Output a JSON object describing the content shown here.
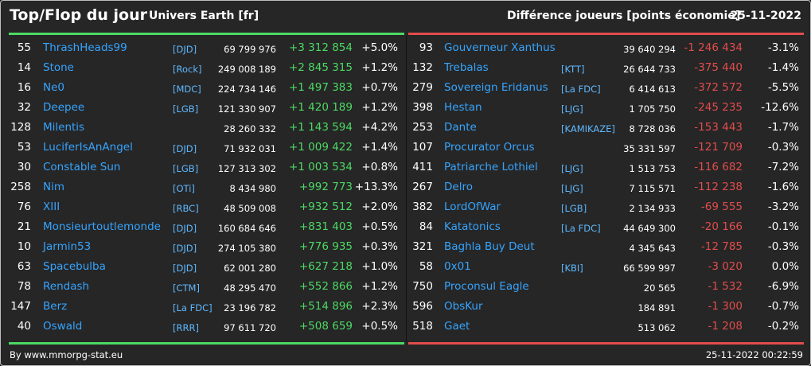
{
  "header": {
    "title": "Top/Flop du jour",
    "subtitle": "Univers Earth [fr]",
    "metric": "Différence joueurs [points économie]",
    "date": "25-11-2022"
  },
  "colors": {
    "accent_positive": "#4cd964",
    "accent_negative": "#e24c4c",
    "link": "#35a4ff",
    "background": "#262626"
  },
  "top": [
    {
      "rank": "55",
      "name": "ThrashHeads99",
      "tag": "[DJD]",
      "score": "69 799 976",
      "diff": "+3 312 854",
      "pct": "+5.0%"
    },
    {
      "rank": "14",
      "name": "Stone",
      "tag": "[Rock]",
      "score": "249 008 189",
      "diff": "+2 845 315",
      "pct": "+1.2%"
    },
    {
      "rank": "16",
      "name": "Ne0",
      "tag": "[MDC]",
      "score": "224 734 146",
      "diff": "+1 497 383",
      "pct": "+0.7%"
    },
    {
      "rank": "32",
      "name": "Deepee",
      "tag": "[LGB]",
      "score": "121 330 907",
      "diff": "+1 420 189",
      "pct": "+1.2%"
    },
    {
      "rank": "128",
      "name": "Milentis",
      "tag": "",
      "score": "28 260 332",
      "diff": "+1 143 594",
      "pct": "+4.2%"
    },
    {
      "rank": "53",
      "name": "LuciferIsAnAngel",
      "tag": "[DJD]",
      "score": "71 932 031",
      "diff": "+1 009 422",
      "pct": "+1.4%"
    },
    {
      "rank": "30",
      "name": "Constable Sun",
      "tag": "[LGB]",
      "score": "127 313 302",
      "diff": "+1 003 534",
      "pct": "+0.8%"
    },
    {
      "rank": "258",
      "name": "Nim",
      "tag": "[OTi]",
      "score": "8 434 980",
      "diff": "+992 773",
      "pct": "+13.3%"
    },
    {
      "rank": "76",
      "name": "XIII",
      "tag": "[RBC]",
      "score": "48 509 008",
      "diff": "+932 512",
      "pct": "+2.0%"
    },
    {
      "rank": "21",
      "name": "Monsieurtoutlemonde",
      "tag": "[DJD]",
      "score": "160 684 646",
      "diff": "+831 403",
      "pct": "+0.5%"
    },
    {
      "rank": "10",
      "name": "Jarmin53",
      "tag": "[DJD]",
      "score": "274 105 380",
      "diff": "+776 935",
      "pct": "+0.3%"
    },
    {
      "rank": "63",
      "name": "Spacebulba",
      "tag": "[DJD]",
      "score": "62 001 280",
      "diff": "+627 218",
      "pct": "+1.0%"
    },
    {
      "rank": "78",
      "name": "Rendash",
      "tag": "[CTM]",
      "score": "48 295 470",
      "diff": "+552 866",
      "pct": "+1.2%"
    },
    {
      "rank": "147",
      "name": "Berz",
      "tag": "[La FDC]",
      "score": "23 196 782",
      "diff": "+514 896",
      "pct": "+2.3%"
    },
    {
      "rank": "40",
      "name": "Oswald",
      "tag": "[RRR]",
      "score": "97 611 720",
      "diff": "+508 659",
      "pct": "+0.5%"
    }
  ],
  "flop": [
    {
      "rank": "93",
      "name": "Gouverneur Xanthus",
      "tag": "",
      "score": "39 640 294",
      "diff": "-1 246 434",
      "pct": "-3.1%"
    },
    {
      "rank": "132",
      "name": "Trebalas",
      "tag": "[KTT]",
      "score": "26 644 733",
      "diff": "-375 440",
      "pct": "-1.4%"
    },
    {
      "rank": "279",
      "name": "Sovereign Eridanus",
      "tag": "[La FDC]",
      "score": "6 414 613",
      "diff": "-372 572",
      "pct": "-5.5%"
    },
    {
      "rank": "398",
      "name": "Hestan",
      "tag": "[LJG]",
      "score": "1 705 750",
      "diff": "-245 235",
      "pct": "-12.6%"
    },
    {
      "rank": "253",
      "name": "Dante",
      "tag": "[KAMIKAZE]",
      "score": "8 728 036",
      "diff": "-153 443",
      "pct": "-1.7%"
    },
    {
      "rank": "107",
      "name": "Procurator Orcus",
      "tag": "",
      "score": "35 331 597",
      "diff": "-121 709",
      "pct": "-0.3%"
    },
    {
      "rank": "411",
      "name": "Patriarche Lothiel",
      "tag": "[LJG]",
      "score": "1 513 753",
      "diff": "-116 682",
      "pct": "-7.2%"
    },
    {
      "rank": "267",
      "name": "Delro",
      "tag": "[LJG]",
      "score": "7 115 571",
      "diff": "-112 238",
      "pct": "-1.6%"
    },
    {
      "rank": "382",
      "name": "LordOfWar",
      "tag": "[LGB]",
      "score": "2 134 933",
      "diff": "-69 555",
      "pct": "-3.2%"
    },
    {
      "rank": "84",
      "name": "Katatonics",
      "tag": "[La FDC]",
      "score": "44 649 300",
      "diff": "-20 166",
      "pct": "-0.1%"
    },
    {
      "rank": "321",
      "name": "Baghla Buy Deut",
      "tag": "",
      "score": "4 345 643",
      "diff": "-12 785",
      "pct": "-0.3%"
    },
    {
      "rank": "58",
      "name": "0x01",
      "tag": "[KBI]",
      "score": "66 599 997",
      "diff": "-3 020",
      "pct": "0.0%"
    },
    {
      "rank": "750",
      "name": "Proconsul Eagle",
      "tag": "",
      "score": "20 565",
      "diff": "-1 532",
      "pct": "-6.9%"
    },
    {
      "rank": "596",
      "name": "ObsKur",
      "tag": "",
      "score": "184 891",
      "diff": "-1 300",
      "pct": "-0.7%"
    },
    {
      "rank": "518",
      "name": "Gaet",
      "tag": "",
      "score": "513 062",
      "diff": "-1 208",
      "pct": "-0.2%"
    }
  ],
  "footer": {
    "credit": "By www.mmorpg-stat.eu",
    "timestamp": "25-11-2022 00:22:59"
  }
}
